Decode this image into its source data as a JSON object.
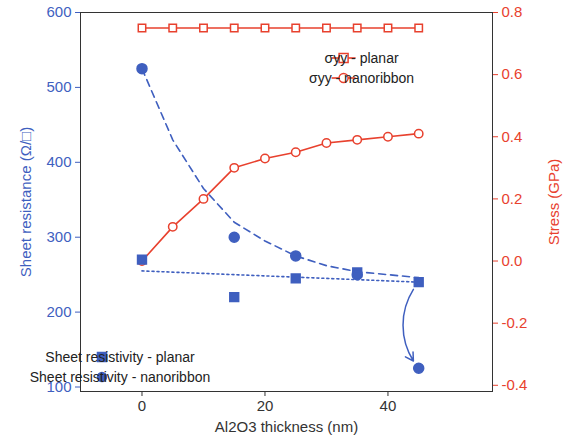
{
  "chart_data": {
    "type": "line",
    "xlabel": "Al2O3 thickness (nm)",
    "ylabel": "Sheet resistance (Ω/□)",
    "y2label": "Stress (GPa)",
    "xlim": [
      -10,
      57
    ],
    "xticks": [
      0,
      20,
      40
    ],
    "ylim": [
      94,
      600
    ],
    "yticks": [
      100,
      200,
      300,
      400,
      500,
      600
    ],
    "y2lim": [
      -0.42,
      0.8
    ],
    "y2ticks": [
      -0.4,
      -0.2,
      {
        "value": 0,
        "label": "0.0"
      },
      0.2,
      0.4,
      0.6,
      0.8
    ],
    "legend": "upper right",
    "series": [
      {
        "name": "σyy - planar",
        "type": "line",
        "axis": "y2",
        "color": "#e8412e",
        "marker": "square",
        "line_style": "solid",
        "x": [
          0,
          5,
          10,
          15,
          20,
          25,
          30,
          35,
          40,
          45
        ],
        "values": [
          0.75,
          0.75,
          0.75,
          0.75,
          0.75,
          0.75,
          0.75,
          0.75,
          0.75,
          0.75
        ]
      },
      {
        "name": "σyy - nanoribbon",
        "type": "line",
        "axis": "y2",
        "color": "#e8412e",
        "marker": "circle",
        "line_style": "solid",
        "x": [
          0,
          5,
          10,
          15,
          20,
          25,
          30,
          35,
          40,
          45
        ],
        "values": [
          0.0,
          0.11,
          0.2,
          0.3,
          0.33,
          0.35,
          0.38,
          0.39,
          0.4,
          0.41
        ]
      },
      {
        "name": "Sheet resistivity - planar",
        "type": "scatter",
        "axis": "y",
        "color": "#3f5fbf",
        "marker": "square",
        "x": [
          0,
          15,
          25,
          35,
          45
        ],
        "values": [
          270,
          220,
          245,
          253,
          240
        ]
      },
      {
        "name": "Sheet resistivity - nanoribbon",
        "type": "scatter",
        "axis": "y",
        "color": "#3f5fbf",
        "marker": "circle",
        "x": [
          0,
          15,
          25,
          35,
          45
        ],
        "values": [
          525,
          300,
          275,
          250,
          125
        ]
      },
      {
        "type": "line",
        "axis": "y",
        "color": "#3f5fbf",
        "line_style": "dotted",
        "x": [
          0,
          45
        ],
        "values": [
          255,
          240
        ]
      },
      {
        "type": "line",
        "axis": "y",
        "color": "#3f5fbf",
        "line_style": "dashed",
        "x": [
          0,
          5,
          10,
          15,
          20,
          25,
          30,
          35,
          40,
          45
        ],
        "values": [
          525,
          430,
          365,
          320,
          295,
          275,
          262,
          254,
          250,
          246
        ]
      }
    ]
  }
}
